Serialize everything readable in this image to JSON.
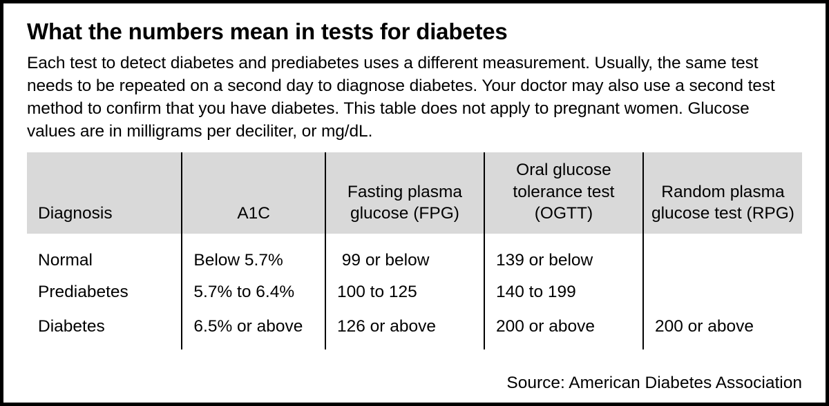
{
  "title": "What the numbers mean in tests for diabetes",
  "blurb": "Each test to detect diabetes and prediabetes uses a different measurement. Usually, the same test needs to be repeated on a second day to diagnose diabetes. Your doctor may also use a second test method to confirm that you have diabetes. This table does not apply to pregnant women. Glucose values are in milligrams per deciliter, or mg/dL.",
  "table": {
    "columns": [
      {
        "label": "Diagnosis",
        "align": "left"
      },
      {
        "label": "A1C",
        "align": "center"
      },
      {
        "label": "Fasting plasma glucose (FPG)",
        "align": "center"
      },
      {
        "label": "Oral glucose tolerance test (OGTT)",
        "align": "center"
      },
      {
        "label": "Random plasma glucose test (RPG)",
        "align": "center"
      }
    ],
    "rows": [
      {
        "diagnosis": "Normal",
        "a1c": "Below 5.7%",
        "fpg": " 99 or below",
        "ogtt": "139 or below",
        "rpg": ""
      },
      {
        "diagnosis": "Prediabetes",
        "a1c": "5.7% to 6.4%",
        "fpg": "100 to 125",
        "ogtt": "140 to 199",
        "rpg": ""
      },
      {
        "diagnosis": "Diabetes",
        "a1c": "6.5% or above",
        "fpg": "126 or above",
        "ogtt": "200 or above",
        "rpg": "200 or above"
      }
    ],
    "header_bg": "#d9d9d9",
    "rule_color": "#000000",
    "font_size_pt": 18
  },
  "source": "Source: American Diabetes Association",
  "frame_border_color": "#000000",
  "background_color": "#ffffff"
}
